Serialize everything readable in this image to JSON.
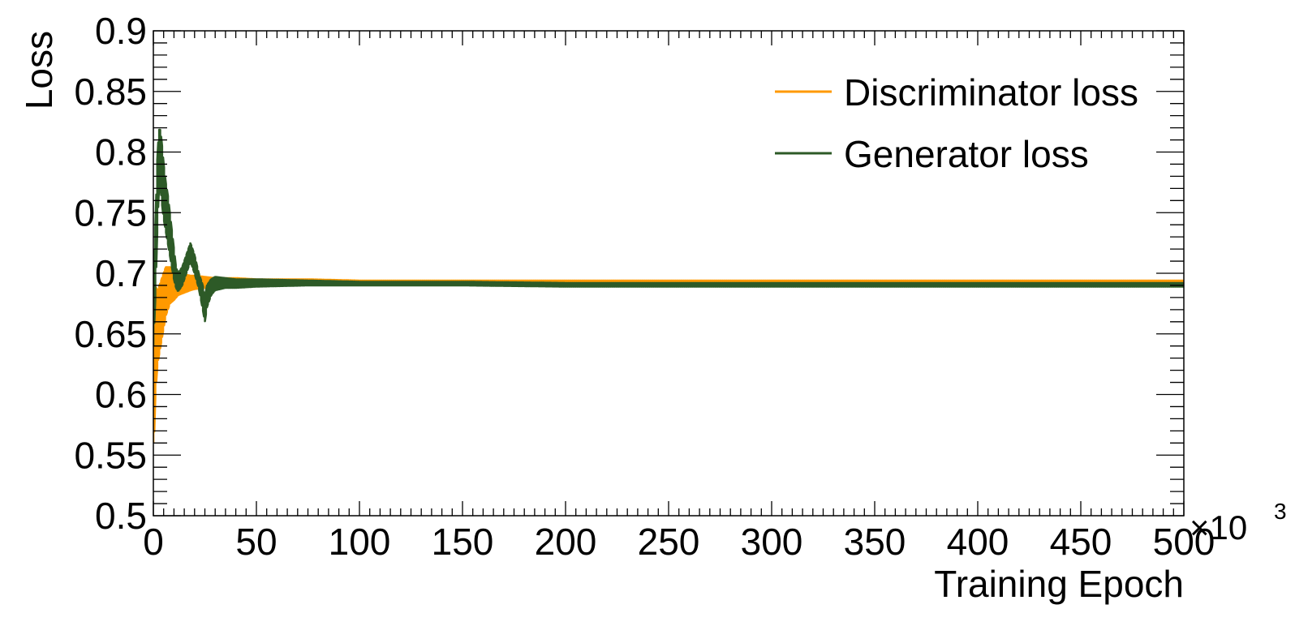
{
  "chart_data": {
    "type": "line",
    "title": "",
    "xlabel": "Training Epoch",
    "ylabel": "Loss",
    "x_multiplier_label": "×10",
    "x_multiplier_exponent": "3",
    "xlim": [
      0,
      500
    ],
    "ylim": [
      0.5,
      0.9
    ],
    "x_ticks": [
      0,
      50,
      100,
      150,
      200,
      250,
      300,
      350,
      400,
      450,
      500
    ],
    "x_tick_labels": [
      "0",
      "50",
      "100",
      "150",
      "200",
      "250",
      "300",
      "350",
      "400",
      "450",
      "500"
    ],
    "y_ticks": [
      0.5,
      0.55,
      0.6,
      0.65,
      0.7,
      0.75,
      0.8,
      0.85,
      0.9
    ],
    "y_tick_labels": [
      "0.5",
      "0.55",
      "0.6",
      "0.65",
      "0.7",
      "0.75",
      "0.8",
      "0.85",
      "0.9"
    ],
    "grid": false,
    "legend_position": "top-right",
    "series": [
      {
        "name": "Discriminator loss",
        "color": "#ff9900",
        "x": [
          0,
          0.5,
          1,
          2,
          3,
          4,
          5,
          6,
          8,
          10,
          12,
          15,
          18,
          20,
          25,
          30,
          40,
          50,
          75,
          100,
          150,
          200,
          300,
          400,
          500
        ],
        "upper": [
          0.58,
          0.66,
          0.69,
          0.685,
          0.69,
          0.695,
          0.7,
          0.705,
          0.705,
          0.702,
          0.7,
          0.699,
          0.698,
          0.698,
          0.697,
          0.696,
          0.696,
          0.695,
          0.695,
          0.694,
          0.694,
          0.694,
          0.694,
          0.694,
          0.694
        ],
        "lower": [
          0.56,
          0.57,
          0.6,
          0.625,
          0.635,
          0.645,
          0.655,
          0.665,
          0.675,
          0.678,
          0.682,
          0.684,
          0.686,
          0.687,
          0.688,
          0.689,
          0.69,
          0.69,
          0.691,
          0.691,
          0.692,
          0.692,
          0.692,
          0.692,
          0.692
        ]
      },
      {
        "name": "Generator loss",
        "color": "#2d5a27",
        "x": [
          0,
          1,
          2,
          3,
          4,
          5,
          6,
          7,
          8,
          9,
          10,
          11,
          12,
          14,
          16,
          18,
          20,
          22,
          24,
          25,
          26,
          28,
          30,
          35,
          40,
          50,
          75,
          100,
          150,
          200,
          300,
          400,
          500
        ],
        "upper": [
          0.7,
          0.74,
          0.8,
          0.822,
          0.81,
          0.79,
          0.775,
          0.765,
          0.75,
          0.735,
          0.72,
          0.705,
          0.7,
          0.705,
          0.715,
          0.725,
          0.715,
          0.7,
          0.69,
          0.68,
          0.69,
          0.695,
          0.697,
          0.696,
          0.695,
          0.695,
          0.694,
          0.693,
          0.693,
          0.692,
          0.692,
          0.692,
          0.692
        ],
        "lower": [
          0.64,
          0.68,
          0.74,
          0.78,
          0.76,
          0.745,
          0.735,
          0.725,
          0.715,
          0.705,
          0.695,
          0.688,
          0.685,
          0.69,
          0.7,
          0.71,
          0.7,
          0.688,
          0.67,
          0.66,
          0.672,
          0.682,
          0.686,
          0.688,
          0.688,
          0.689,
          0.69,
          0.69,
          0.69,
          0.689,
          0.689,
          0.689,
          0.689
        ]
      }
    ]
  }
}
